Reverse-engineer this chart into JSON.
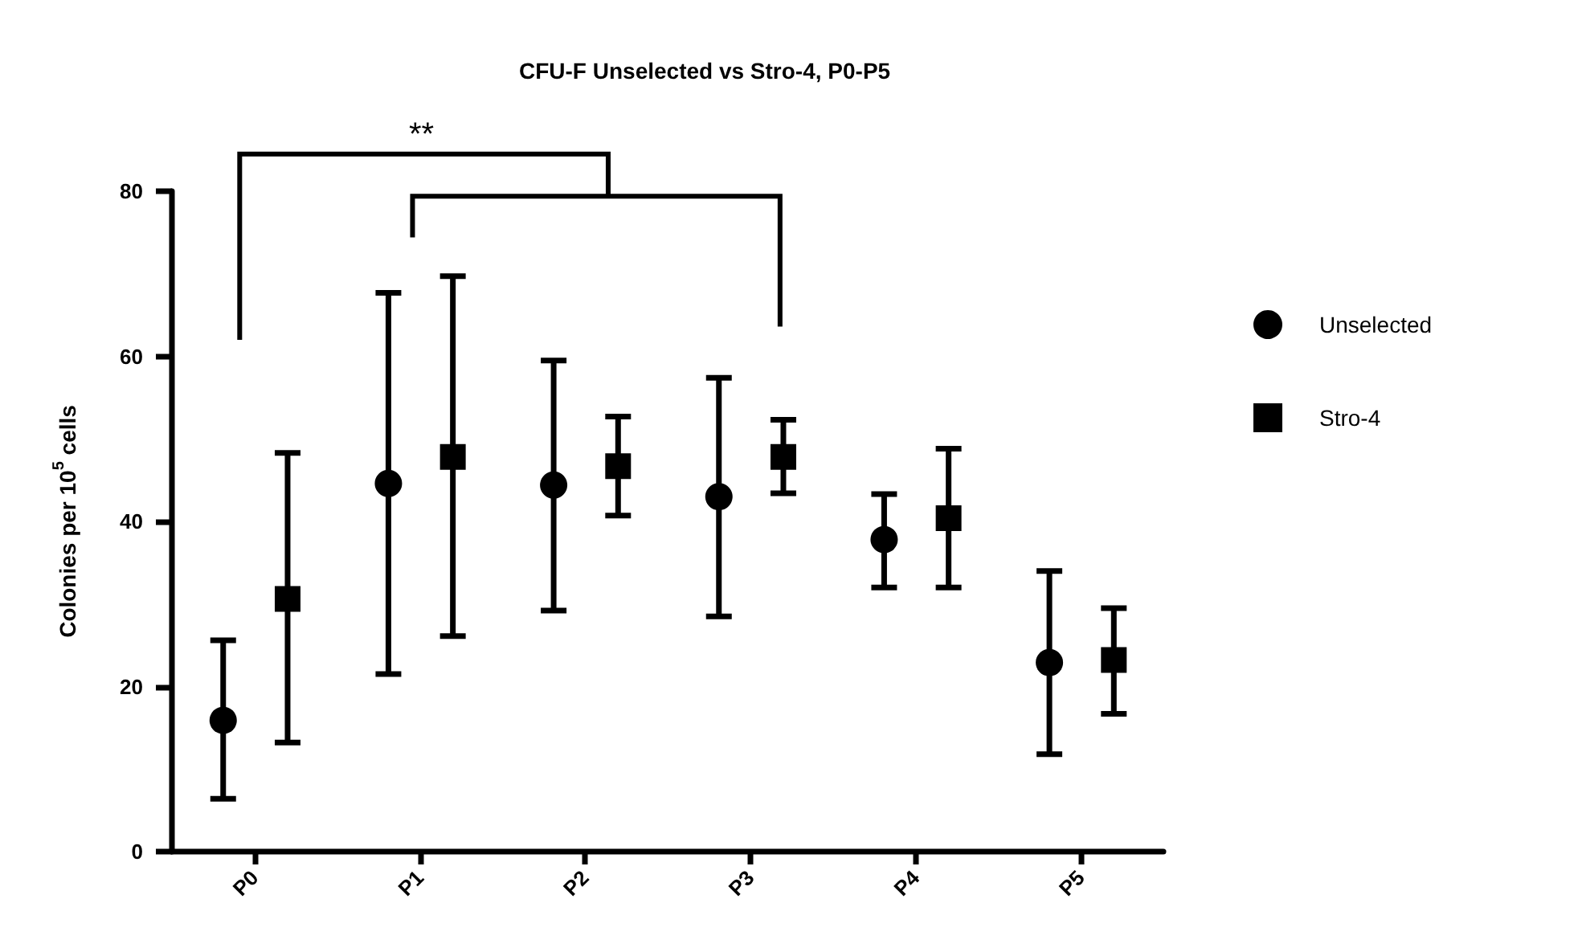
{
  "chart_data": {
    "type": "scatter",
    "title": "CFU-F Unselected vs Stro-4, P0-P5",
    "ylabel": "Colonies per 10$^{5}$ cells",
    "categories": [
      "P0",
      "P1",
      "P2",
      "P3",
      "P4",
      "P5"
    ],
    "series": [
      {
        "name": "Unselected",
        "color": "#000000",
        "marker": "circle",
        "values": [
          15.9,
          44.6,
          44.4,
          43.0,
          37.8,
          22.9
        ],
        "errors": [
          [
            6.4,
            25.6
          ],
          [
            21.5,
            67.7
          ],
          [
            29.2,
            59.5
          ],
          [
            28.5,
            57.4
          ],
          [
            32.0,
            43.3
          ],
          [
            11.8,
            34.0
          ]
        ]
      },
      {
        "name": "Stro-4",
        "color": "#000000",
        "marker": "square",
        "values": [
          30.6,
          47.8,
          46.7,
          47.8,
          40.4,
          23.2
        ],
        "errors": [
          [
            13.2,
            48.3
          ],
          [
            26.1,
            69.7
          ],
          [
            40.7,
            52.7
          ],
          [
            43.4,
            52.3
          ],
          [
            32.0,
            48.8
          ],
          [
            16.7,
            29.5
          ]
        ]
      }
    ],
    "ylim": [
      0,
      80
    ],
    "yticks": [
      0,
      20,
      40,
      60,
      80
    ],
    "grid": false,
    "legend": "right",
    "annotations": [
      "**"
    ]
  }
}
